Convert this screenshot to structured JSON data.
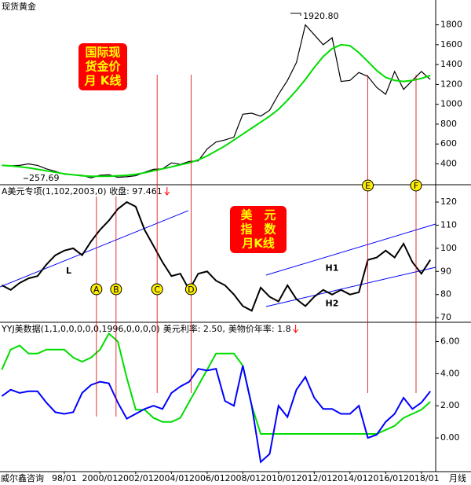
{
  "footer_left": "威尔鑫咨询",
  "footer_right": "月线",
  "events": [
    {
      "label": "A",
      "x": 1999.8
    },
    {
      "label": "B",
      "x": 2000.9
    },
    {
      "label": "C",
      "x": 2003.2
    },
    {
      "label": "D",
      "x": 2005.1
    },
    {
      "label": "E",
      "x": 2015.0
    },
    {
      "label": "F",
      "x": 2017.7
    }
  ],
  "chart_data": [
    {
      "type": "line",
      "title": "现货黄金",
      "xlim": [
        1994.4,
        2018.8
      ],
      "ylim": [
        190,
        2050
      ],
      "yticks": [
        400,
        600,
        800,
        1000,
        1200,
        1400,
        1600,
        1800
      ],
      "annotations": [
        "1920.80",
        "257.69"
      ],
      "box_text": [
        "国际现",
        "货金价",
        "月 K线"
      ],
      "x": [
        1994.5,
        1995,
        1995.5,
        1996,
        1996.5,
        1997,
        1997.5,
        1998,
        1998.5,
        1999,
        1999.5,
        2000,
        2000.5,
        2001,
        2001.5,
        2002,
        2002.5,
        2003,
        2003.5,
        2004,
        2004.5,
        2005,
        2005.5,
        2006,
        2006.5,
        2007,
        2007.5,
        2008,
        2008.5,
        2009,
        2009.5,
        2010,
        2010.5,
        2011,
        2011.5,
        2012,
        2012.5,
        2013,
        2013.5,
        2014,
        2014.5,
        2015,
        2015.5,
        2016,
        2016.5,
        2017,
        2017.5,
        2018,
        2018.5
      ],
      "series": [
        {
          "color": "#000000",
          "values": [
            385,
            380,
            385,
            400,
            385,
            350,
            325,
            295,
            290,
            285,
            260,
            285,
            290,
            265,
            270,
            280,
            315,
            345,
            350,
            410,
            395,
            425,
            430,
            550,
            620,
            640,
            670,
            900,
            910,
            880,
            940,
            1100,
            1240,
            1420,
            1800,
            1700,
            1600,
            1670,
            1230,
            1240,
            1320,
            1280,
            1170,
            1100,
            1330,
            1150,
            1240,
            1330,
            1250
          ]
        },
        {
          "color": "#00dd00",
          "values": [
            385,
            380,
            370,
            360,
            345,
            330,
            315,
            300,
            290,
            280,
            275,
            275,
            275,
            280,
            285,
            295,
            310,
            330,
            350,
            370,
            390,
            410,
            440,
            480,
            530,
            580,
            640,
            700,
            760,
            820,
            880,
            950,
            1040,
            1140,
            1250,
            1370,
            1480,
            1560,
            1600,
            1590,
            1520,
            1430,
            1340,
            1270,
            1240,
            1230,
            1240,
            1260,
            1290
          ]
        }
      ]
    },
    {
      "type": "line",
      "title": "A美元专项(1,102,2003,0) 收盘: 97.461",
      "xlim": [
        1994.4,
        2018.8
      ],
      "ylim": [
        68,
        127.5
      ],
      "yticks": [
        70,
        80,
        90,
        100,
        110,
        120
      ],
      "box_text": [
        "美　元",
        "指　数",
        "月K线"
      ],
      "trendlines": [
        {
          "label": "L",
          "points": [
            [
              1994.4,
              83.3
            ],
            [
              2004.95,
              116.3
            ]
          ]
        },
        {
          "label": "H1",
          "points": [
            [
              2009.3,
              88.4
            ],
            [
              2018.8,
              110.5
            ]
          ]
        },
        {
          "label": "H2",
          "points": [
            [
              2009.3,
              74.8
            ],
            [
              2018.8,
              91.8
            ]
          ]
        }
      ],
      "x": [
        1994.5,
        1995,
        1995.5,
        1996,
        1996.5,
        1997,
        1997.5,
        1998,
        1998.5,
        1999,
        1999.5,
        2000,
        2000.5,
        2001,
        2001.5,
        2002,
        2002.5,
        2003,
        2003.5,
        2004,
        2004.5,
        2005,
        2005.5,
        2006,
        2006.5,
        2007,
        2007.5,
        2008,
        2008.5,
        2009,
        2009.5,
        2010,
        2010.5,
        2011,
        2011.5,
        2012,
        2012.5,
        2013,
        2013.5,
        2014,
        2014.5,
        2015,
        2015.5,
        2016,
        2016.5,
        2017,
        2017.5,
        2018,
        2018.5
      ],
      "series": [
        {
          "color": "#000000",
          "values": [
            84,
            82,
            85,
            87,
            88,
            93,
            97,
            99,
            100,
            97,
            103,
            108,
            112,
            117,
            120,
            118,
            108,
            101,
            94,
            88,
            89,
            82,
            89,
            90,
            86,
            84,
            80,
            75,
            73,
            83,
            79,
            77,
            84,
            78,
            75,
            79,
            82,
            80,
            82,
            80,
            81,
            95,
            96,
            99,
            96,
            102,
            94,
            89,
            95
          ]
        }
      ]
    },
    {
      "type": "line",
      "title": "YYJ美数据(1,1,0,0,0,0,0,1996,0,0,0,0)",
      "xlim": [
        1994.4,
        2018.8
      ],
      "ylim": [
        -2.1,
        7.2
      ],
      "yticks": [
        {
          "value": 0,
          "label": "0.00"
        },
        {
          "value": 2,
          "label": "2.00"
        },
        {
          "value": 4,
          "label": "4.00"
        },
        {
          "value": 6,
          "label": "6.00"
        }
      ],
      "xticks": [
        {
          "value": 1998,
          "label": "98/01"
        },
        {
          "value": 2000,
          "label": "2000/01"
        },
        {
          "value": 2002,
          "label": "2002/01"
        },
        {
          "value": 2004,
          "label": "2004/01"
        },
        {
          "value": 2006,
          "label": "2006/01"
        },
        {
          "value": 2008,
          "label": "2008/01"
        },
        {
          "value": 2010,
          "label": "2010/01"
        },
        {
          "value": 2012,
          "label": "2012/01"
        },
        {
          "value": 2014,
          "label": "2014/01"
        },
        {
          "value": 2016,
          "label": "2016/01"
        },
        {
          "value": 2018,
          "label": "2018/01"
        }
      ],
      "x": [
        1994.5,
        1995,
        1995.5,
        1996,
        1996.5,
        1997,
        1997.5,
        1998,
        1998.5,
        1999,
        1999.5,
        2000,
        2000.5,
        2001,
        2001.5,
        2002,
        2002.5,
        2003,
        2003.5,
        2004,
        2004.5,
        2005,
        2005.5,
        2006,
        2006.5,
        2007,
        2007.5,
        2008,
        2008.5,
        2009,
        2009.5,
        2010,
        2010.5,
        2011,
        2011.5,
        2012,
        2012.5,
        2013,
        2013.5,
        2014,
        2014.5,
        2015,
        2015.5,
        2016,
        2016.5,
        2017,
        2017.5,
        2018,
        2018.5
      ],
      "series": [
        {
          "name": "美元利率: 2.50,",
          "color": "#00dd00",
          "values": [
            4.25,
            5.5,
            5.75,
            5.25,
            5.25,
            5.5,
            5.5,
            5.5,
            5.0,
            4.75,
            5.0,
            5.5,
            6.5,
            6.0,
            3.75,
            1.75,
            1.75,
            1.25,
            1.0,
            1.0,
            1.25,
            2.25,
            3.25,
            4.25,
            5.25,
            5.25,
            5.25,
            4.5,
            2.0,
            0.25,
            0.25,
            0.25,
            0.25,
            0.25,
            0.25,
            0.25,
            0.25,
            0.25,
            0.25,
            0.25,
            0.25,
            0.25,
            0.25,
            0.5,
            0.75,
            1.25,
            1.5,
            1.75,
            2.25
          ]
        },
        {
          "name": "美物价年率: 1.8",
          "color": "#0000ff",
          "values": [
            2.6,
            3.0,
            2.8,
            2.9,
            2.9,
            2.2,
            1.6,
            1.5,
            1.6,
            2.8,
            3.3,
            3.5,
            3.4,
            2.2,
            1.2,
            1.5,
            1.8,
            2.0,
            1.8,
            2.8,
            3.2,
            3.5,
            4.3,
            4.2,
            4.3,
            2.3,
            2.0,
            4.5,
            2.0,
            -1.5,
            -1.0,
            2.0,
            1.3,
            3.0,
            3.8,
            2.5,
            1.8,
            1.8,
            1.5,
            1.5,
            2.0,
            0.0,
            0.2,
            1.0,
            1.5,
            2.5,
            1.8,
            2.2,
            2.9
          ]
        }
      ]
    }
  ]
}
